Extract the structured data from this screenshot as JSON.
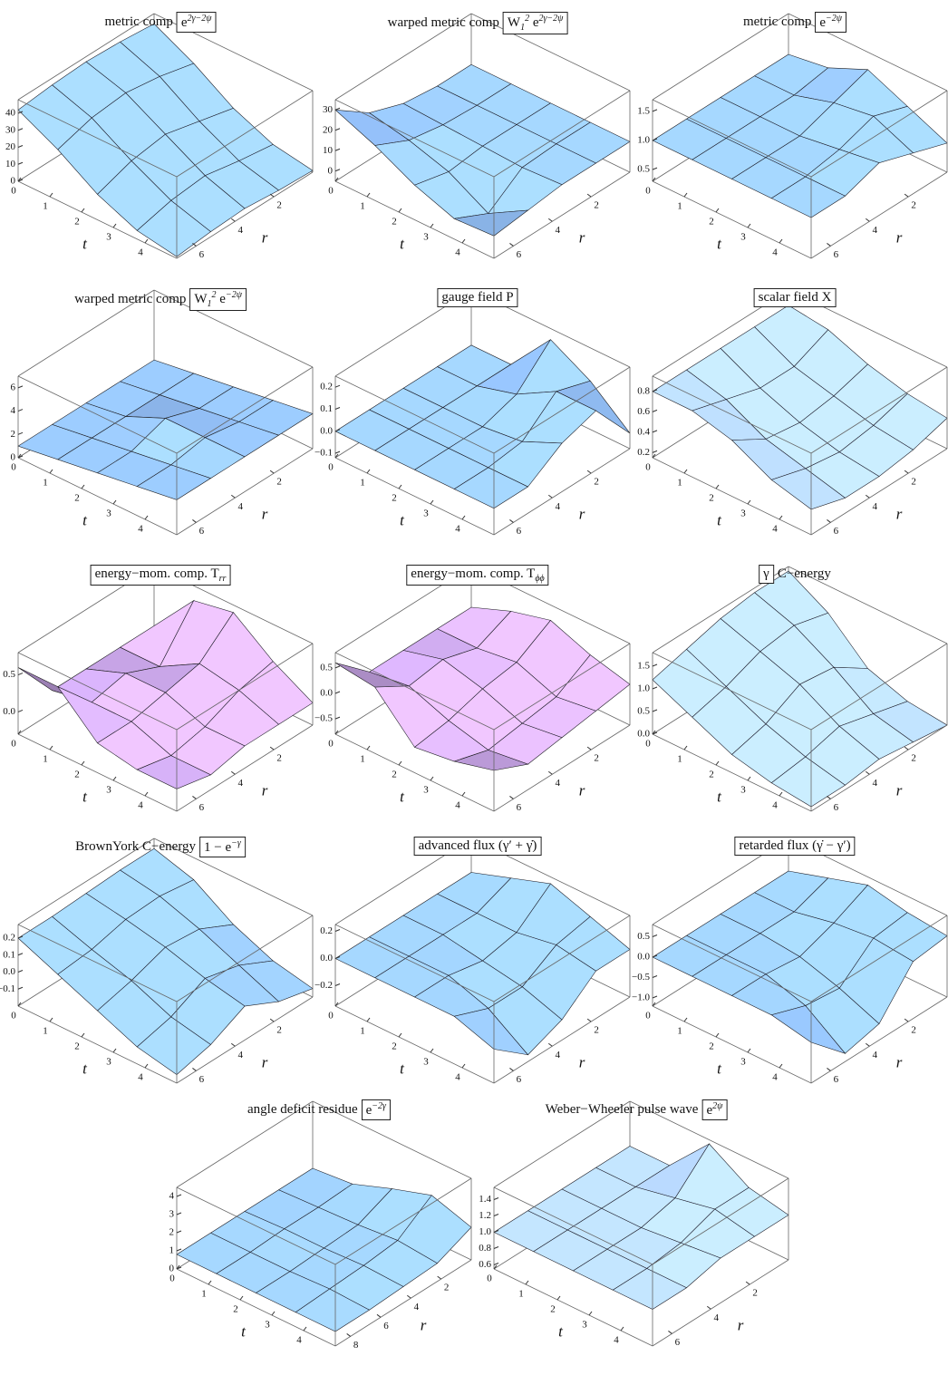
{
  "chart_data": [
    {
      "type": "surface",
      "title": "metric comp",
      "formula": [
        {
          "text": "e"
        },
        {
          "text": "2γ−2ψ",
          "pos": "sup"
        }
      ],
      "color": "#8fbaf0",
      "xlabel": "t",
      "ylabel": "r",
      "x": [
        0,
        1.25,
        2.5,
        3.75,
        5
      ],
      "y": [
        0,
        1.75,
        3.5,
        5.25,
        7
      ],
      "xlim": [
        0,
        5
      ],
      "ylim": [
        0,
        7
      ],
      "xticks": [
        0,
        1,
        2,
        3,
        4
      ],
      "yticks": [
        2,
        4,
        6
      ],
      "zlim": [
        0,
        48
      ],
      "zticks": [
        0,
        10,
        20,
        30,
        40
      ],
      "z": [
        [
          42,
          44,
          45,
          44,
          42
        ],
        [
          30,
          35,
          38,
          36,
          30
        ],
        [
          15,
          20,
          25,
          22,
          15
        ],
        [
          5,
          8,
          12,
          10,
          5
        ],
        [
          1,
          2,
          4,
          3,
          1
        ]
      ]
    },
    {
      "type": "surface",
      "title": "warped metric comp",
      "formula": [
        {
          "text": "W"
        },
        {
          "text": "1",
          "pos": "sub"
        },
        {
          "text": "2",
          "pos": "sup"
        },
        {
          "text": " e"
        },
        {
          "text": "2γ−2ψ",
          "pos": "sup"
        }
      ],
      "color": "#8fbaf0",
      "xlabel": "t",
      "ylabel": "r",
      "x": [
        0,
        1.25,
        2.5,
        3.75,
        5
      ],
      "y": [
        0,
        1.75,
        3.5,
        5.25,
        7
      ],
      "xlim": [
        0,
        5
      ],
      "ylim": [
        0,
        7
      ],
      "xticks": [
        0,
        1,
        2,
        3,
        4
      ],
      "yticks": [
        2,
        4,
        6
      ],
      "zlim": [
        -5,
        35
      ],
      "zticks": [
        0,
        10,
        20,
        30
      ],
      "z": [
        [
          10,
          10,
          12,
          18,
          30
        ],
        [
          10,
          10,
          11,
          14,
          22
        ],
        [
          10,
          10,
          10,
          8,
          12
        ],
        [
          10,
          10,
          9,
          -3,
          5
        ],
        [
          10,
          10,
          10,
          8,
          6
        ]
      ]
    },
    {
      "type": "surface",
      "title": "metric comp",
      "formula": [
        {
          "text": "e"
        },
        {
          "text": "−2ψ",
          "pos": "sup"
        }
      ],
      "color": "#8fbaf0",
      "xlabel": "t",
      "ylabel": "r",
      "x": [
        0,
        1.25,
        2.5,
        3.75,
        5
      ],
      "y": [
        0,
        1.75,
        3.5,
        5.25,
        7
      ],
      "xlim": [
        0,
        5
      ],
      "ylim": [
        0,
        7
      ],
      "xticks": [
        0,
        1,
        2,
        3,
        4
      ],
      "yticks": [
        2,
        4,
        6
      ],
      "zlim": [
        0.3,
        1.7
      ],
      "zticks": [
        0.5,
        {
          "value": 1,
          "label": "1.0"
        },
        1.5
      ],
      "z": [
        [
          1.0,
          1.0,
          1.0,
          1.0,
          1.0
        ],
        [
          1.1,
          1.0,
          1.0,
          1.0,
          1.0
        ],
        [
          1.4,
          1.2,
          1.0,
          1.0,
          1.0
        ],
        [
          1.1,
          1.3,
          1.1,
          1.0,
          1.0
        ],
        [
          0.8,
          1.0,
          1.2,
          1.0,
          1.0
        ]
      ]
    },
    {
      "type": "surface",
      "title": "warped metric comp",
      "formula": [
        {
          "text": "W"
        },
        {
          "text": "1",
          "pos": "sub"
        },
        {
          "text": "2",
          "pos": "sup"
        },
        {
          "text": " e"
        },
        {
          "text": "−2ψ",
          "pos": "sup"
        }
      ],
      "color": "#8fbaf0",
      "xlabel": "t",
      "ylabel": "r",
      "x": [
        0,
        1.25,
        2.5,
        3.75,
        5
      ],
      "y": [
        0,
        1.75,
        3.5,
        5.25,
        7
      ],
      "xlim": [
        0,
        5
      ],
      "ylim": [
        0,
        7
      ],
      "xticks": [
        0,
        1,
        2,
        3,
        4
      ],
      "yticks": [
        2,
        4,
        6
      ],
      "zlim": [
        0,
        7
      ],
      "zticks": [
        0,
        2,
        4,
        6
      ],
      "z": [
        [
          1,
          1,
          1,
          1,
          1
        ],
        [
          1.5,
          1.5,
          1.5,
          1.5,
          1.5
        ],
        [
          2,
          2,
          3,
          2,
          2
        ],
        [
          2.5,
          2.5,
          3,
          2.5,
          2.5
        ],
        [
          3,
          3,
          3,
          3,
          3
        ]
      ]
    },
    {
      "type": "surface",
      "formula": [
        {
          "text": "gauge field P"
        }
      ],
      "color": "#8fbaf0",
      "xlabel": "t",
      "ylabel": "r",
      "x": [
        0,
        1.25,
        2.5,
        3.75,
        5
      ],
      "y": [
        0,
        1.75,
        3.5,
        5.25,
        7
      ],
      "xlim": [
        0,
        5
      ],
      "ylim": [
        0,
        7
      ],
      "xticks": [
        0,
        1,
        2,
        3,
        4
      ],
      "yticks": [
        2,
        4,
        6
      ],
      "zlim": [
        -0.12,
        0.25
      ],
      "zticks": [
        {
          "value": -0.1,
          "label": "−0.1"
        },
        {
          "value": 0,
          "label": "0.0"
        },
        0.1,
        0.2
      ],
      "z": [
        [
          0,
          0,
          0,
          0,
          0
        ],
        [
          0,
          0,
          0,
          0,
          0
        ],
        [
          0.2,
          0.05,
          0,
          0,
          0
        ],
        [
          0.1,
          0.15,
          0.02,
          0,
          0
        ],
        [
          -0.05,
          0.15,
          0.1,
          0,
          0
        ]
      ]
    },
    {
      "type": "surface",
      "formula": [
        {
          "text": "scalar field X"
        }
      ],
      "color": "#a9c6f2",
      "xlabel": "t",
      "ylabel": "r",
      "x": [
        0,
        1.25,
        2.5,
        3.75,
        5
      ],
      "y": [
        0,
        1.75,
        3.5,
        5.25,
        7
      ],
      "xlim": [
        0,
        5
      ],
      "ylim": [
        0,
        7
      ],
      "xticks": [
        0,
        1,
        2,
        3,
        4
      ],
      "yticks": [
        2,
        4,
        6
      ],
      "zlim": [
        0.15,
        0.95
      ],
      "zticks": [
        0.2,
        0.4,
        0.6,
        0.8
      ],
      "z": [
        [
          0.8,
          0.8,
          0.8,
          0.8,
          0.8
        ],
        [
          0.75,
          0.6,
          0.6,
          0.7,
          0.8
        ],
        [
          0.6,
          0.5,
          0.45,
          0.5,
          0.7
        ],
        [
          0.5,
          0.4,
          0.35,
          0.4,
          0.5
        ],
        [
          0.45,
          0.35,
          0.3,
          0.3,
          0.4
        ]
      ]
    },
    {
      "type": "surface",
      "formula": [
        {
          "text": "energy−mom. comp. T"
        },
        {
          "text": "rr",
          "pos": "sub"
        }
      ],
      "color": "#c9a6e8",
      "xlabel": "t",
      "ylabel": "r",
      "x": [
        0,
        1.25,
        2.5,
        3.75,
        5
      ],
      "y": [
        0,
        1.75,
        3.5,
        5.25,
        7
      ],
      "xlim": [
        0,
        5
      ],
      "ylim": [
        0,
        7
      ],
      "xticks": [
        0,
        1,
        2,
        3,
        4
      ],
      "yticks": [
        2,
        4,
        6
      ],
      "zlim": [
        -0.3,
        0.8
      ],
      "zticks": [
        {
          "value": 0,
          "label": "0.0"
        },
        0.5
      ],
      "z": [
        [
          0,
          0,
          0,
          0,
          0.6
        ],
        [
          0.6,
          0,
          0.2,
          0.1,
          0.6
        ],
        [
          0.7,
          0.3,
          0.2,
          0.1,
          0.1
        ],
        [
          0.3,
          0.2,
          0,
          -0.1,
          0
        ],
        [
          0,
          0,
          0,
          -0.1,
          0
        ]
      ]
    },
    {
      "type": "surface",
      "formula": [
        {
          "text": "energy−mom. comp. T"
        },
        {
          "text": "ϕϕ",
          "pos": "sub"
        }
      ],
      "color": "#c9a6e8",
      "xlabel": "t",
      "ylabel": "r",
      "x": [
        0,
        1.25,
        2.5,
        3.75,
        5
      ],
      "y": [
        0,
        1.75,
        3.5,
        5.25,
        7
      ],
      "xlim": [
        0,
        5
      ],
      "ylim": [
        0,
        7
      ],
      "xticks": [
        0,
        1,
        2,
        3,
        4
      ],
      "yticks": [
        2,
        4,
        6
      ],
      "zlim": [
        -0.8,
        0.8
      ],
      "zticks": [
        {
          "value": -0.5,
          "label": "−0.5"
        },
        {
          "value": 0,
          "label": "0.0"
        },
        0.5
      ],
      "z": [
        [
          0,
          0,
          0,
          0,
          0.6
        ],
        [
          0.3,
          0,
          0.2,
          0.1,
          0.5
        ],
        [
          0.5,
          0.1,
          0,
          -0.2,
          -0.3
        ],
        [
          0.2,
          -0.2,
          -0.3,
          -0.4,
          -0.2
        ],
        [
          0,
          -0.1,
          -0.2,
          -0.3,
          0
        ]
      ]
    },
    {
      "type": "surface",
      "formula": [
        {
          "text": "γ"
        }
      ],
      "title_after": "C−energy",
      "color": "#a9c6f2",
      "xlabel": "t",
      "ylabel": "r",
      "x": [
        0,
        1.25,
        2.5,
        3.75,
        5
      ],
      "y": [
        0,
        1.75,
        3.5,
        5.25,
        7
      ],
      "xlim": [
        0,
        5
      ],
      "ylim": [
        0,
        7
      ],
      "xticks": [
        0,
        1,
        2,
        3,
        4
      ],
      "yticks": [
        2,
        4,
        6
      ],
      "zlim": [
        0,
        1.8
      ],
      "zticks": [
        {
          "value": 0,
          "label": "0.0"
        },
        0.5,
        {
          "value": 1,
          "label": "1.0"
        },
        1.5
      ],
      "z": [
        [
          1.7,
          1.7,
          1.6,
          1.4,
          1.2
        ],
        [
          1.2,
          1.4,
          1.3,
          1.0,
          0.8
        ],
        [
          0.4,
          0.9,
          1.0,
          0.6,
          0.4
        ],
        [
          0.1,
          0.3,
          0.5,
          0.3,
          0.2
        ],
        [
          0,
          0.1,
          0.2,
          0.1,
          0.1
        ]
      ]
    },
    {
      "type": "surface",
      "title": "BrownYork C−energy",
      "formula": [
        {
          "text": "1 − e"
        },
        {
          "text": "−γ",
          "pos": "sup"
        }
      ],
      "color": "#8fbaf0",
      "xlabel": "t",
      "ylabel": "r",
      "x": [
        0,
        1.25,
        2.5,
        3.75,
        5
      ],
      "y": [
        0,
        1.75,
        3.5,
        5.25,
        7
      ],
      "xlim": [
        0,
        5
      ],
      "ylim": [
        0,
        7
      ],
      "xticks": [
        0,
        1,
        2,
        3,
        4
      ],
      "yticks": [
        2,
        4,
        6
      ],
      "zlim": [
        -0.2,
        0.28
      ],
      "zticks": [
        {
          "value": -0.1,
          "label": "−0.1"
        },
        {
          "value": 0,
          "label": "0.0"
        },
        0.1,
        0.2
      ],
      "z": [
        [
          0.22,
          0.22,
          0.21,
          0.2,
          0.2
        ],
        [
          0.15,
          0.18,
          0.17,
          0.12,
          0.1
        ],
        [
          0.0,
          0.1,
          0.12,
          0.05,
          0.0
        ],
        [
          -0.1,
          0.0,
          0.05,
          -0.05,
          -0.1
        ],
        [
          -0.15,
          -0.1,
          0,
          -0.1,
          -0.15
        ]
      ]
    },
    {
      "type": "surface",
      "formula": [
        {
          "text": "advanced flux (γ′ + γ̇)"
        }
      ],
      "color": "#8fbaf0",
      "xlabel": "t",
      "ylabel": "r",
      "x": [
        0,
        1.25,
        2.5,
        3.75,
        5
      ],
      "y": [
        0,
        1.75,
        3.5,
        5.25,
        7
      ],
      "xlim": [
        0,
        5
      ],
      "ylim": [
        0,
        7
      ],
      "xticks": [
        0,
        1,
        2,
        3,
        4
      ],
      "yticks": [
        2,
        4,
        6
      ],
      "zlim": [
        -0.35,
        0.25
      ],
      "zticks": [
        {
          "value": -0.2,
          "label": "−0.2"
        },
        {
          "value": 0,
          "label": "0.0"
        },
        0.2
      ],
      "z": [
        [
          0,
          0,
          0,
          0,
          0
        ],
        [
          0.1,
          0,
          0,
          0,
          0
        ],
        [
          0.2,
          0,
          -0.05,
          0,
          0
        ],
        [
          0.1,
          0.05,
          -0.1,
          -0.1,
          0
        ],
        [
          0,
          0,
          -0.2,
          -0.3,
          -0.1
        ]
      ]
    },
    {
      "type": "surface",
      "formula": [
        {
          "text": "retarded flux (γ̇ − γ′)"
        }
      ],
      "color": "#8fbaf0",
      "xlabel": "t",
      "ylabel": "r",
      "x": [
        0,
        1.25,
        2.5,
        3.75,
        5
      ],
      "y": [
        0,
        1.75,
        3.5,
        5.25,
        7
      ],
      "xlim": [
        0,
        5
      ],
      "ylim": [
        0,
        7
      ],
      "xticks": [
        0,
        1,
        2,
        3,
        4
      ],
      "yticks": [
        2,
        4,
        6
      ],
      "zlim": [
        -1.2,
        0.8
      ],
      "zticks": [
        {
          "value": -1,
          "label": "−1.0"
        },
        {
          "value": -0.5,
          "label": "−0.5"
        },
        {
          "value": 0,
          "label": "0.0"
        },
        0.5
      ],
      "z": [
        [
          0,
          0,
          0,
          0,
          0
        ],
        [
          0.3,
          0,
          0,
          0,
          0
        ],
        [
          0.6,
          0.2,
          -0.1,
          0,
          0
        ],
        [
          0.4,
          0.3,
          -0.4,
          -0.3,
          0
        ],
        [
          0.3,
          0.2,
          -0.8,
          -1,
          -0.2
        ]
      ]
    },
    {
      "type": "surface",
      "title": "angle deficit residue",
      "formula": [
        {
          "text": "e"
        },
        {
          "text": "−2γ",
          "pos": "sup"
        }
      ],
      "color": "#8fbaf0",
      "xlabel": "t",
      "ylabel": "r",
      "x": [
        0,
        1.25,
        2.5,
        3.75,
        5
      ],
      "y": [
        0,
        2.25,
        4.5,
        6.75,
        9
      ],
      "xlim": [
        0,
        5
      ],
      "ylim": [
        0,
        9
      ],
      "xticks": [
        0,
        1,
        2,
        3,
        4
      ],
      "yticks": [
        2,
        4,
        6,
        8
      ],
      "zlim": [
        0,
        4.5
      ],
      "zticks": [
        0,
        1,
        2,
        3,
        4
      ],
      "z": [
        [
          0.8,
          0.8,
          0.8,
          0.8,
          0.8
        ],
        [
          1.0,
          0.9,
          0.9,
          0.8,
          0.8
        ],
        [
          1.8,
          1.0,
          0.9,
          0.8,
          0.8
        ],
        [
          2.5,
          1.2,
          1.0,
          0.9,
          0.8
        ],
        [
          1.8,
          1.0,
          0.9,
          0.8,
          0.8
        ]
      ]
    },
    {
      "type": "surface",
      "title": "Weber−Wheeler pulse wave",
      "formula": [
        {
          "text": "e"
        },
        {
          "text": "2ψ",
          "pos": "sup"
        }
      ],
      "color": "#a9c6f2",
      "xlabel": "t",
      "ylabel": "r",
      "x": [
        0,
        1.25,
        2.5,
        3.75,
        5
      ],
      "y": [
        0,
        1.75,
        3.5,
        5.25,
        7
      ],
      "xlim": [
        0,
        5
      ],
      "ylim": [
        0,
        7
      ],
      "xticks": [
        0,
        1,
        2,
        3,
        4
      ],
      "yticks": [
        2,
        4,
        6
      ],
      "zlim": [
        0.55,
        1.55
      ],
      "zticks": [
        0.6,
        0.8,
        {
          "value": 1,
          "label": "1.0"
        },
        1.2,
        1.4
      ],
      "z": [
        [
          1.0,
          1.0,
          1.0,
          1.0,
          1.0
        ],
        [
          1.0,
          1.0,
          1.0,
          1.0,
          1.0
        ],
        [
          1.5,
          1.1,
          1.0,
          1.0,
          1.0
        ],
        [
          1.2,
          1.2,
          1.05,
          1.0,
          1.0
        ],
        [
          1.1,
          1.1,
          1.1,
          1.0,
          1.0
        ]
      ]
    }
  ]
}
